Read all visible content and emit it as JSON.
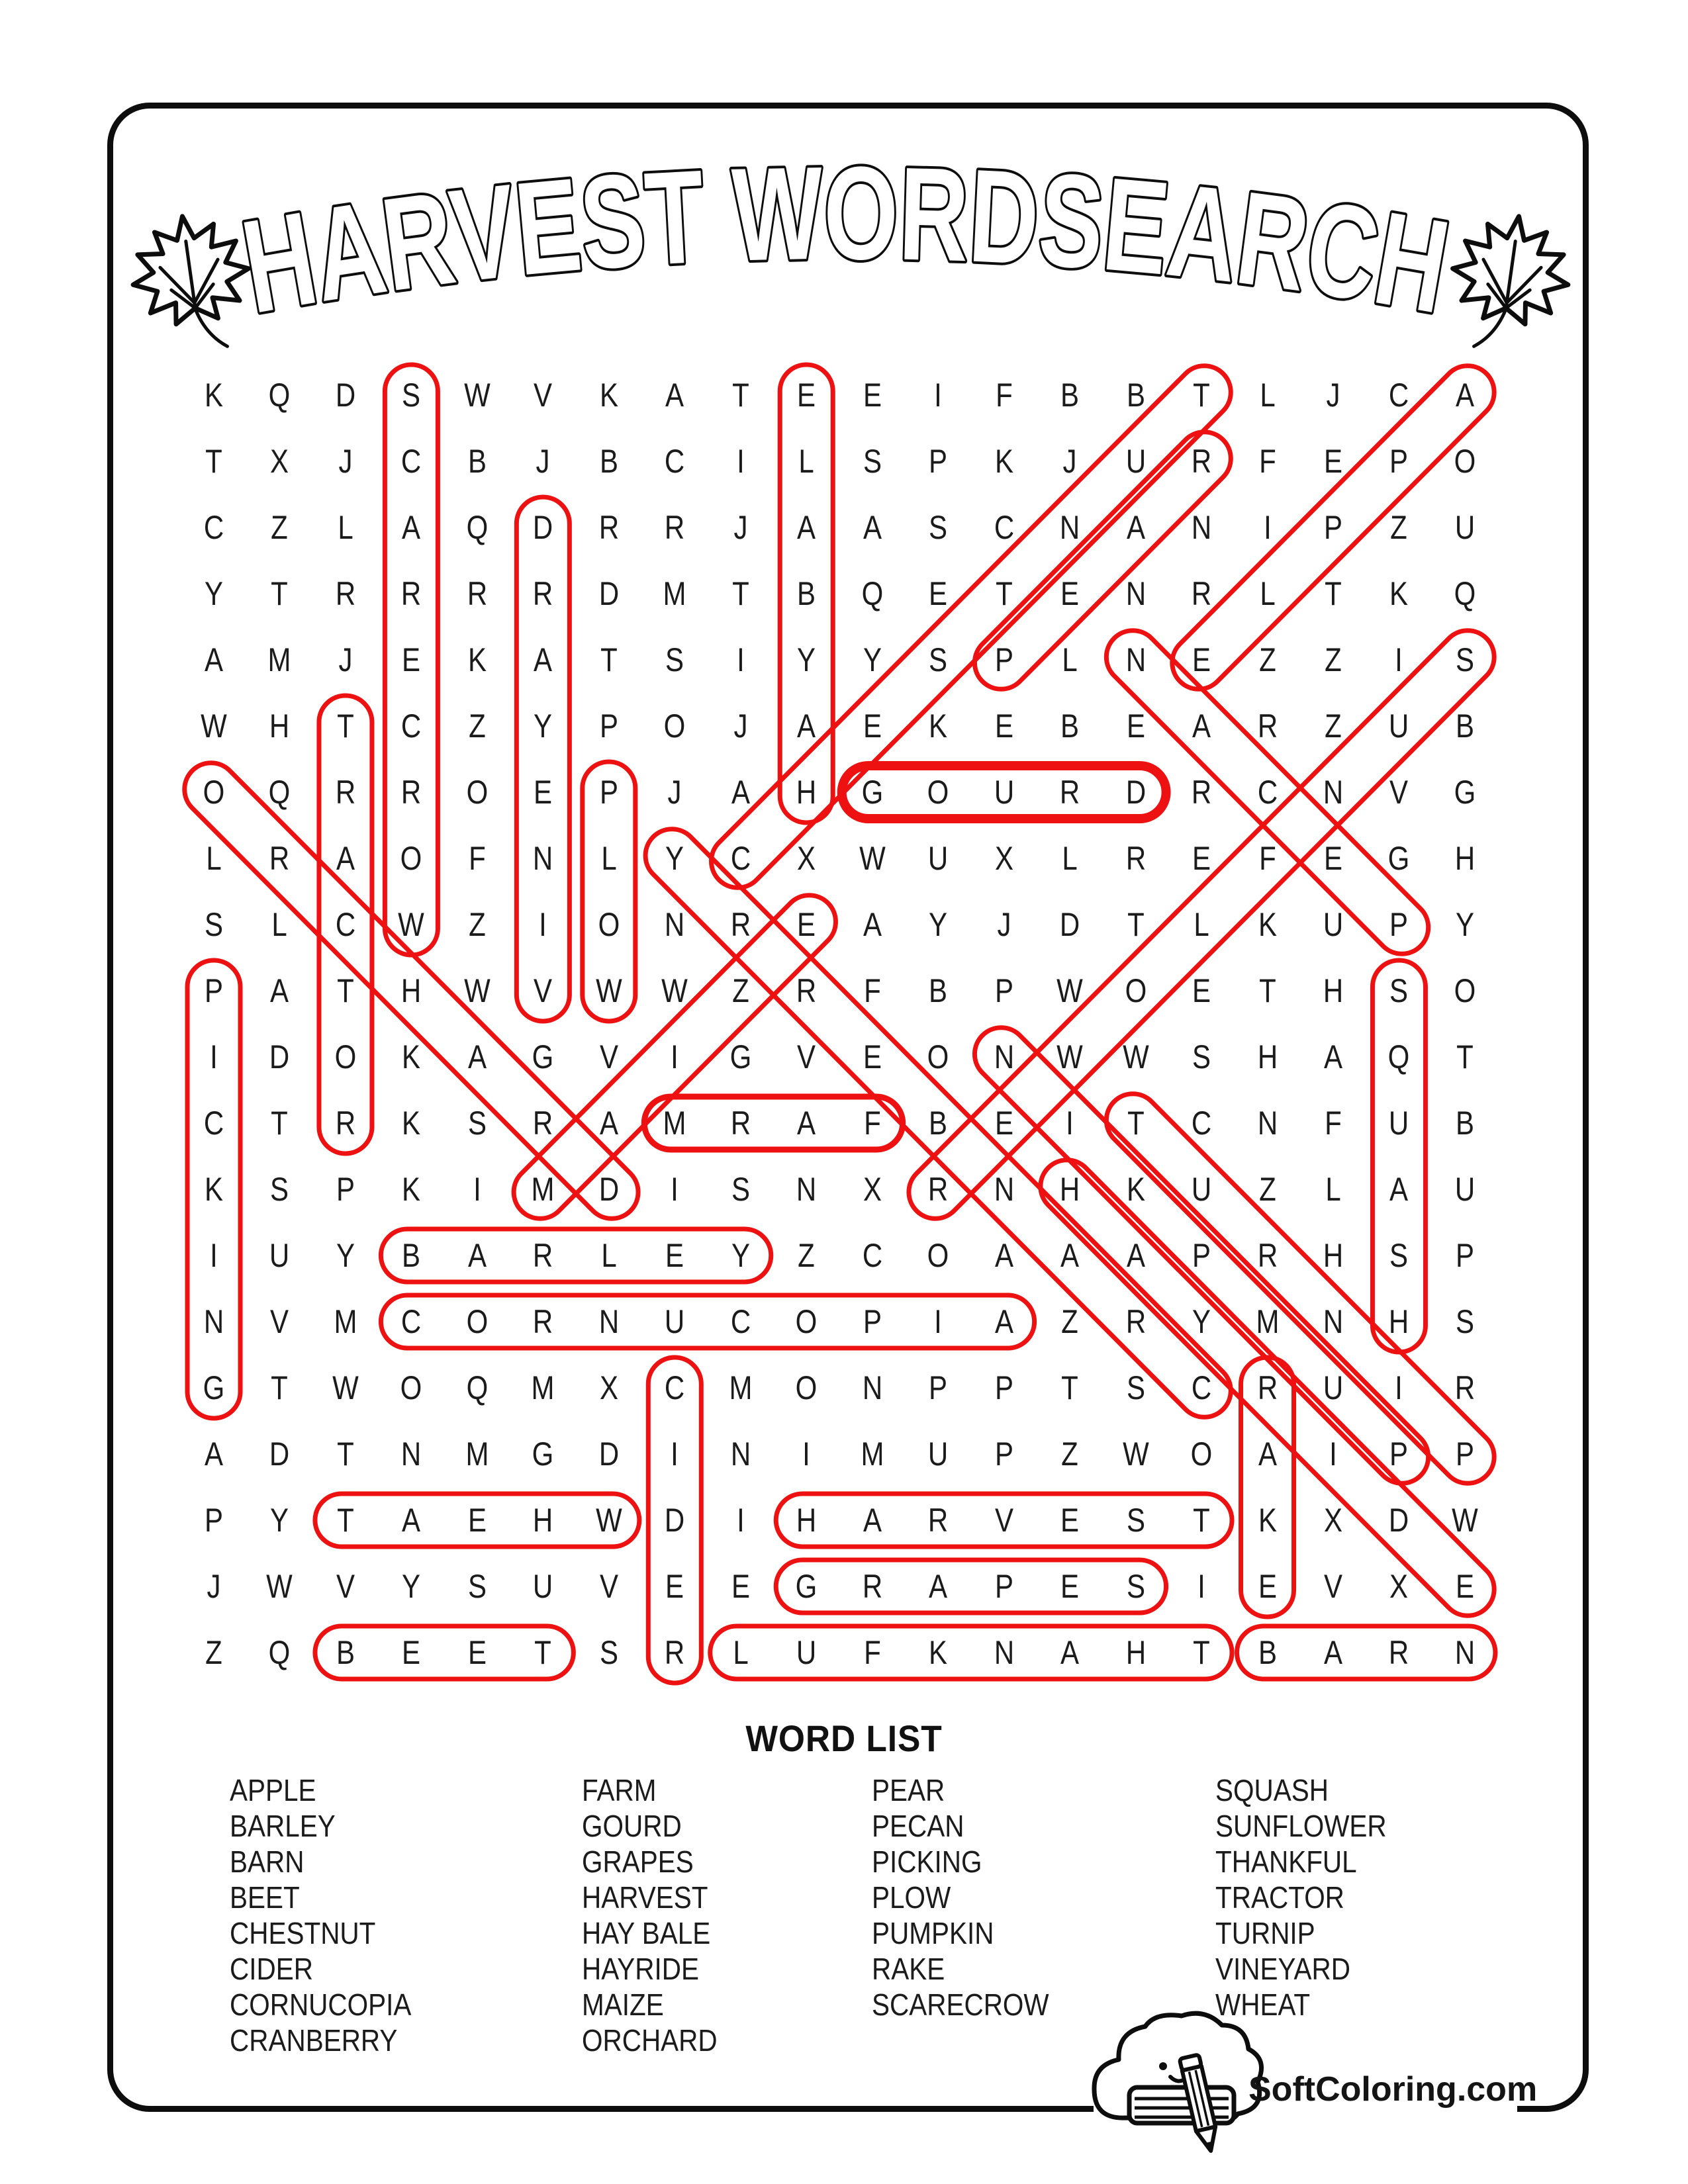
{
  "page": {
    "title": "HARVEST WORDSEARCH",
    "footer_brand": "SoftColoring.com",
    "ink_color": "#0d0d0d"
  },
  "word_list": {
    "heading": "WORD LIST",
    "columns": [
      [
        "APPLE",
        "BARLEY",
        "BARN",
        "BEET",
        "CHESTNUT",
        "CIDER",
        "CORNUCOPIA",
        "CRANBERRY"
      ],
      [
        "FARM",
        "GOURD",
        "GRAPES",
        "HARVEST",
        "HAY BALE",
        "HAYRIDE",
        "MAIZE",
        "ORCHARD"
      ],
      [
        "PEAR",
        "PECAN",
        "PICKING",
        "PLOW",
        "PUMPKIN",
        "RAKE",
        "SCARECROW"
      ],
      [
        "SQUASH",
        "SUNFLOWER",
        "THANKFUL",
        "TRACTOR",
        "TURNIP",
        "VINEYARD",
        "WHEAT"
      ]
    ]
  },
  "grid": {
    "highlight_color": "#ee1111",
    "rows": [
      "KQDSWVKATEEIFBBTLJCA",
      "TXJCBJBCILSPKJURFEPO",
      "CZLAQDRRJAASCNANIPZU",
      "YTRRRRDMTBQETENRLTKQ",
      "AMJEKATSIYYSPLNEZZIS",
      "WHTCZYPOJAEKEBEARZUB",
      "OQRROEPJAHGOURDRCNVG",
      "LRAOFNLYCXWUXLREFEGH",
      "SLCWZIONREAYJDTLKUPY",
      "PATHWVWWZRFBPWOETHSO",
      "IDOKAGVIGVEONWWSHAQT",
      "CTRKSRAMRAFBEITCNFUB",
      "KSPKIMDISNXRNHKUZLAU",
      "IUYBARLEYZCOAAAPRHSP",
      "NVMCORNUCOPIAZRYMNHS",
      "GTWOQMXCMONPPTSCRUIR",
      "ADTNMGDINIMUPZWOAIPP",
      "PYTAEHWDIHARVESTKXDW",
      "JWVYSUVEEGRAPESIEVXE",
      "ZQBEETSRLUFKNAHTBARN"
    ],
    "found_words": [
      {
        "word": "SCARECROW",
        "from": [
          1,
          4
        ],
        "to": [
          9,
          4
        ]
      },
      {
        "word": "HAY BALE",
        "from": [
          1,
          10
        ],
        "to": [
          7,
          10
        ]
      },
      {
        "word": "CHESTNUT",
        "from": [
          1,
          16
        ],
        "to": [
          8,
          9
        ]
      },
      {
        "word": "APPLE",
        "from": [
          1,
          20
        ],
        "to": [
          5,
          16
        ]
      },
      {
        "word": "PEAR",
        "from": [
          2,
          16
        ],
        "to": [
          5,
          13
        ]
      },
      {
        "word": "VINEYARD",
        "from": [
          3,
          6
        ],
        "to": [
          10,
          6
        ]
      },
      {
        "word": "PECAN",
        "from": [
          5,
          15
        ],
        "to": [
          9,
          19
        ]
      },
      {
        "word": "SUNFLOWER",
        "from": [
          5,
          20
        ],
        "to": [
          13,
          12
        ]
      },
      {
        "word": "TRACTOR",
        "from": [
          6,
          3
        ],
        "to": [
          12,
          3
        ]
      },
      {
        "word": "ORCHARD",
        "from": [
          7,
          1
        ],
        "to": [
          13,
          7
        ]
      },
      {
        "word": "PLOW",
        "from": [
          7,
          7
        ],
        "to": [
          10,
          7
        ]
      },
      {
        "word": "GOURD",
        "from": [
          7,
          11
        ],
        "to": [
          7,
          15
        ],
        "stroke": 14
      },
      {
        "word": "CRANBERRY",
        "from": [
          8,
          8
        ],
        "to": [
          16,
          16
        ]
      },
      {
        "word": "MAIZE",
        "from": [
          9,
          10
        ],
        "to": [
          13,
          6
        ]
      },
      {
        "word": "PICKING",
        "from": [
          10,
          1
        ],
        "to": [
          16,
          1
        ]
      },
      {
        "word": "SQUASH",
        "from": [
          10,
          19
        ],
        "to": [
          15,
          19
        ]
      },
      {
        "word": "PUMPKIN",
        "from": [
          11,
          13
        ],
        "to": [
          17,
          19
        ]
      },
      {
        "word": "FARM",
        "from": [
          12,
          8
        ],
        "to": [
          12,
          11
        ],
        "stroke": 9
      },
      {
        "word": "TURNIP",
        "from": [
          12,
          15
        ],
        "to": [
          17,
          20
        ]
      },
      {
        "word": "HAYRIDE",
        "from": [
          13,
          14
        ],
        "to": [
          19,
          20
        ]
      },
      {
        "word": "BARLEY",
        "from": [
          14,
          4
        ],
        "to": [
          14,
          9
        ]
      },
      {
        "word": "CORNUCOPIA",
        "from": [
          15,
          4
        ],
        "to": [
          15,
          13
        ]
      },
      {
        "word": "CIDER",
        "from": [
          16,
          8
        ],
        "to": [
          20,
          8
        ]
      },
      {
        "word": "RAKE",
        "from": [
          16,
          17
        ],
        "to": [
          19,
          17
        ]
      },
      {
        "word": "WHEAT",
        "from": [
          18,
          3
        ],
        "to": [
          18,
          7
        ]
      },
      {
        "word": "HARVEST",
        "from": [
          18,
          10
        ],
        "to": [
          18,
          16
        ]
      },
      {
        "word": "GRAPES",
        "from": [
          19,
          10
        ],
        "to": [
          19,
          15
        ]
      },
      {
        "word": "BEET",
        "from": [
          20,
          3
        ],
        "to": [
          20,
          6
        ]
      },
      {
        "word": "THANKFUL",
        "from": [
          20,
          9
        ],
        "to": [
          20,
          16
        ]
      },
      {
        "word": "BARN",
        "from": [
          20,
          17
        ],
        "to": [
          20,
          20
        ]
      }
    ]
  }
}
